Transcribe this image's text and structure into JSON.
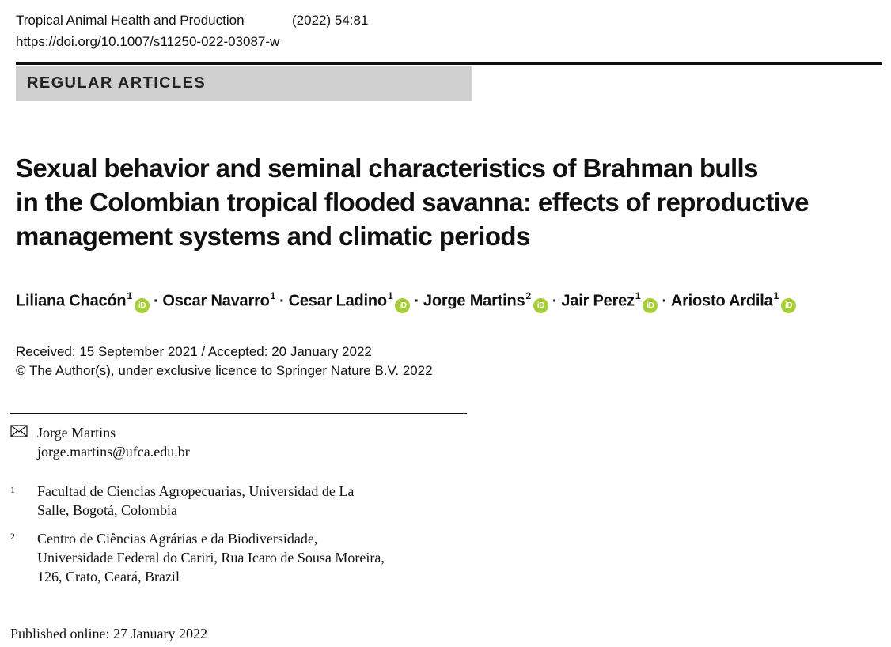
{
  "header": {
    "journal": "Tropical Animal Health and Production",
    "year_volume": "(2022) 54:81",
    "doi": "https://doi.org/10.1007/s11250-022-03087-w"
  },
  "section_label": "REGULAR ARTICLES",
  "title_lines": [
    "Sexual behavior and seminal characteristics of Brahman bulls",
    "in the Colombian tropical flooded savanna: effects of reproductive",
    "management systems and climatic periods"
  ],
  "authors": [
    {
      "name": "Liliana Chacón",
      "aff": "1"
    },
    {
      "name": "Oscar Navarro",
      "aff": "1"
    },
    {
      "name": "Cesar Ladino",
      "aff": "1"
    },
    {
      "name": "Jorge Martins",
      "aff": "2"
    },
    {
      "name": "Jair Perez",
      "aff": "1"
    },
    {
      "name": "Ariosto Ardila",
      "aff": "1"
    }
  ],
  "separator": "·",
  "orcid_label": "iD",
  "dates": {
    "received_accepted": "Received: 15 September 2021 / Accepted: 20 January 2022",
    "copyright": "© The Author(s), under exclusive licence to Springer Nature B.V. 2022"
  },
  "correspondence": {
    "name": "Jorge Martins",
    "email": "jorge.martins@ufca.edu.br"
  },
  "affiliations": [
    {
      "num": "1",
      "lines": [
        "Facultad de Ciencias Agropecuarias, Universidad de La",
        "Salle, Bogotá, Colombia"
      ]
    },
    {
      "num": "2",
      "lines": [
        "Centro de Ciências Agrárias e da Biodiversidade,",
        "Universidade Federal do Cariri, Rua Icaro de Sousa Moreira,",
        "126, Crato, Ceará, Brazil"
      ]
    }
  ],
  "published": "Published online: 27 January 2022",
  "colors": {
    "orcid": "#a6ce39",
    "section_bg": "#cfcfcf"
  },
  "icons": [
    "orcid-icon",
    "envelope-icon"
  ]
}
